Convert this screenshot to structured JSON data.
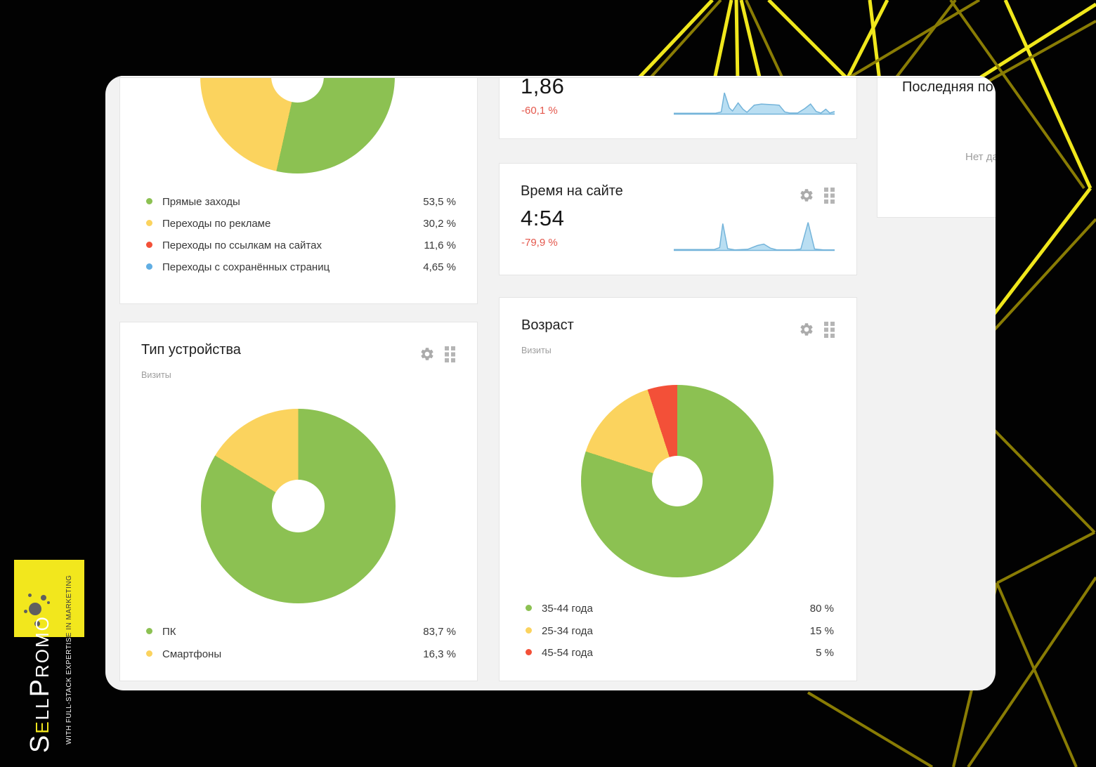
{
  "slide": {
    "background": "#020202",
    "line_color_bright": "#f0e71c",
    "line_color_dark": "#897c04"
  },
  "brand": {
    "name_parts": {
      "s": "S",
      "e": "E",
      "ll": "LL",
      "p": "P",
      "romo": "ROMO"
    },
    "tagline_part1": "WITH FULL-STACK EXPERTIS",
    "tagline_part2": "E IN MARKETING",
    "accent_yellow": "#f2e71d"
  },
  "chart_data": {
    "traffic_sources": {
      "type": "pie",
      "items": [
        {
          "label": "Прямые заходы",
          "value_pct": 53.5,
          "display": "53,5 %",
          "color": "#8cc152"
        },
        {
          "label": "Переходы по рекламе",
          "value_pct": 30.2,
          "display": "30,2 %",
          "color": "#fbd35e"
        },
        {
          "label": "Переходы по ссылкам на сайтах",
          "value_pct": 11.6,
          "display": "11,6 %",
          "color": "#f35038"
        },
        {
          "label": "Переходы с сохранённых страниц",
          "value_pct": 4.65,
          "display": "4,65 %",
          "color": "#61aee3"
        }
      ]
    },
    "metric1": {
      "type": "area",
      "value": "1,86",
      "change": "-60,1 %",
      "fill": "#b9def2",
      "stroke": "#74b4da",
      "spark": [
        [
          0,
          0.04
        ],
        [
          0.26,
          0.04
        ],
        [
          0.295,
          0.1
        ],
        [
          0.315,
          0.95
        ],
        [
          0.345,
          0.28
        ],
        [
          0.365,
          0.14
        ],
        [
          0.4,
          0.5
        ],
        [
          0.43,
          0.22
        ],
        [
          0.455,
          0.08
        ],
        [
          0.5,
          0.4
        ],
        [
          0.545,
          0.45
        ],
        [
          0.62,
          0.42
        ],
        [
          0.655,
          0.4
        ],
        [
          0.69,
          0.1
        ],
        [
          0.72,
          0.05
        ],
        [
          0.77,
          0.05
        ],
        [
          0.815,
          0.25
        ],
        [
          0.85,
          0.45
        ],
        [
          0.885,
          0.12
        ],
        [
          0.915,
          0.05
        ],
        [
          0.945,
          0.22
        ],
        [
          0.97,
          0.05
        ],
        [
          1,
          0.12
        ]
      ]
    },
    "time_on_site": {
      "type": "area",
      "title": "Время на сайте",
      "value": "4:54",
      "change": "-79,9 %",
      "fill": "#b9def2",
      "stroke": "#74b4da",
      "spark": [
        [
          0,
          0.03
        ],
        [
          0.25,
          0.03
        ],
        [
          0.285,
          0.1
        ],
        [
          0.305,
          0.93
        ],
        [
          0.335,
          0.06
        ],
        [
          0.38,
          0.02
        ],
        [
          0.46,
          0.04
        ],
        [
          0.52,
          0.17
        ],
        [
          0.56,
          0.22
        ],
        [
          0.6,
          0.08
        ],
        [
          0.64,
          0.02
        ],
        [
          0.75,
          0.02
        ],
        [
          0.79,
          0.05
        ],
        [
          0.835,
          0.97
        ],
        [
          0.875,
          0.05
        ],
        [
          0.93,
          0.02
        ],
        [
          1,
          0.02
        ]
      ]
    },
    "device_type": {
      "type": "pie",
      "title": "Тип устройства",
      "subtitle": "Визиты",
      "items": [
        {
          "label": "ПК",
          "value_pct": 83.7,
          "display": "83,7 %",
          "color": "#8cc152"
        },
        {
          "label": "Смартфоны",
          "value_pct": 16.3,
          "display": "16,3 %",
          "color": "#fbd35e"
        }
      ]
    },
    "age": {
      "type": "pie",
      "title": "Возраст",
      "subtitle": "Визиты",
      "items": [
        {
          "label": "35-44 года",
          "value_pct": 80,
          "display": "80 %",
          "color": "#8cc152"
        },
        {
          "label": "25-34 года",
          "value_pct": 15,
          "display": "15 %",
          "color": "#fbd35e"
        },
        {
          "label": "45-54 года",
          "value_pct": 5,
          "display": "5 %",
          "color": "#f35038"
        }
      ]
    },
    "last_widget": {
      "title": "Последняя по",
      "empty_text": "Нет да"
    }
  }
}
